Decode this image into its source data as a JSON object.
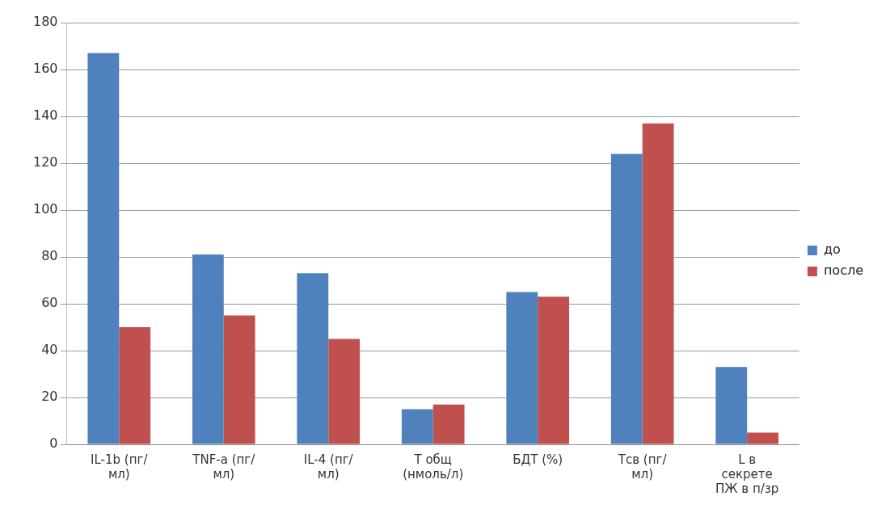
{
  "chart_data": {
    "type": "bar",
    "categories": [
      "IL-1b (пг/\nмл)",
      "TNF-a (пг/\nмл)",
      "IL-4 (пг/\nмл)",
      "Т общ\n(нмоль/л)",
      "БДТ (%)",
      "Тсв (пг/\nмл)",
      "L в\nсекрете\nПЖ в п/зр"
    ],
    "series": [
      {
        "name": "до",
        "color": "#4f81bd",
        "values": [
          167,
          81,
          73,
          15,
          65,
          124,
          33
        ]
      },
      {
        "name": "после",
        "color": "#c0504d",
        "values": [
          50,
          55,
          45,
          17,
          63,
          137,
          5
        ]
      }
    ],
    "ylim": [
      0,
      180
    ],
    "yticks": [
      0,
      20,
      40,
      60,
      80,
      100,
      120,
      140,
      160,
      180
    ],
    "grid": "y",
    "legend": "right"
  }
}
